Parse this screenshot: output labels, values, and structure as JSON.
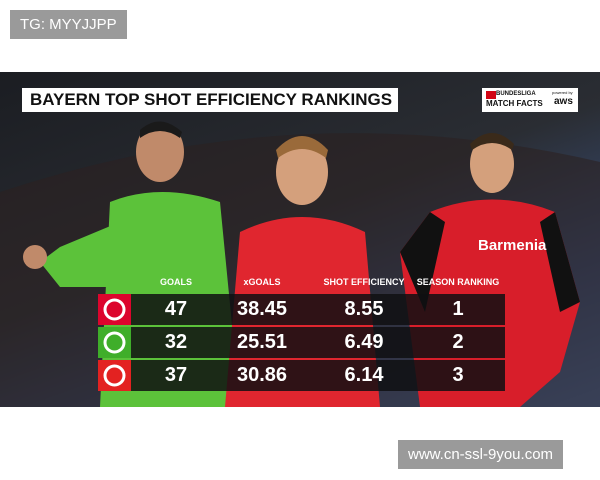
{
  "watermark_top": "TG: MYYJJPP",
  "title": "BAYERN TOP SHOT EFFICIENCY RANKINGS",
  "logo": {
    "brand": "BUNDESLIGA",
    "product": "MATCH FACTS",
    "powered_by": "powered by",
    "sponsor": "aws"
  },
  "shirt_sponsor": "Barmenia",
  "table": {
    "headers": [
      "GOALS",
      "xGOALS",
      "SHOT EFFICIENCY",
      "SEASON RANKING"
    ],
    "rows": [
      [
        47,
        38.45,
        8.55,
        1
      ],
      [
        32,
        25.51,
        6.49,
        2
      ],
      [
        37,
        30.86,
        6.14,
        3
      ]
    ]
  },
  "watermark_bottom": "www.cn-ssl-9you.com"
}
